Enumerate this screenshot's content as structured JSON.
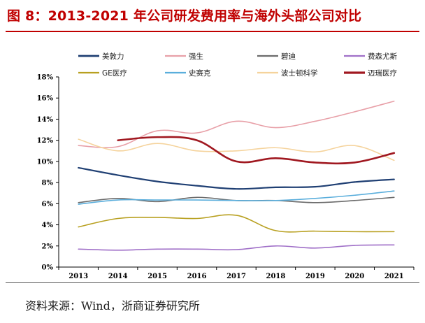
{
  "header": {
    "title": "图 8：2013-2021 年公司研发费用率与海外头部公司对比"
  },
  "footer": {
    "source": "资料来源：Wind，浙商证券研究所"
  },
  "chart_data": {
    "type": "line",
    "title": "",
    "xlabel": "",
    "ylabel": "",
    "x": [
      "2013",
      "2014",
      "2015",
      "2016",
      "2017",
      "2018",
      "2019",
      "2020",
      "2021"
    ],
    "ylim": [
      0,
      18
    ],
    "yticks": [
      0,
      2,
      4,
      6,
      8,
      10,
      12,
      14,
      16,
      18
    ],
    "ytick_labels": [
      "0%",
      "2%",
      "4%",
      "6%",
      "8%",
      "10%",
      "12%",
      "14%",
      "16%",
      "18%"
    ],
    "grid": false,
    "legend_position": "top",
    "series": [
      {
        "name": "美敦力",
        "color": "#1f3f73",
        "width": 2.2,
        "values": [
          9.4,
          8.7,
          8.1,
          7.7,
          7.4,
          7.55,
          7.6,
          8.05,
          8.3
        ]
      },
      {
        "name": "强生",
        "color": "#e8a0a8",
        "width": 1.6,
        "values": [
          11.5,
          11.4,
          12.9,
          12.7,
          13.8,
          13.2,
          13.8,
          14.7,
          15.7
        ]
      },
      {
        "name": "碧迪",
        "color": "#6b6b6b",
        "width": 1.6,
        "values": [
          6.1,
          6.5,
          6.2,
          6.6,
          6.3,
          6.3,
          6.1,
          6.3,
          6.6
        ]
      },
      {
        "name": "费森尤斯",
        "color": "#a070c8",
        "width": 1.6,
        "values": [
          1.7,
          1.6,
          1.7,
          1.7,
          1.65,
          2.0,
          1.8,
          2.05,
          2.1
        ]
      },
      {
        "name": "GE医疗",
        "color": "#b8a020",
        "width": 1.6,
        "values": [
          3.8,
          4.6,
          4.7,
          4.6,
          4.9,
          3.45,
          3.4,
          3.35,
          3.35
        ]
      },
      {
        "name": "史赛克",
        "color": "#5aaedc",
        "width": 1.6,
        "values": [
          5.95,
          6.35,
          6.35,
          6.35,
          6.3,
          6.3,
          6.5,
          6.8,
          7.2
        ]
      },
      {
        "name": "波士顿科学",
        "color": "#f5d39c",
        "width": 1.6,
        "values": [
          12.1,
          11.0,
          11.7,
          11.0,
          11.0,
          11.3,
          10.9,
          11.5,
          10.1
        ]
      },
      {
        "name": "迈瑞医疗",
        "color": "#a01820",
        "width": 2.6,
        "values": [
          null,
          12.0,
          12.3,
          12.0,
          10.0,
          10.3,
          9.9,
          9.9,
          10.8
        ]
      }
    ]
  }
}
